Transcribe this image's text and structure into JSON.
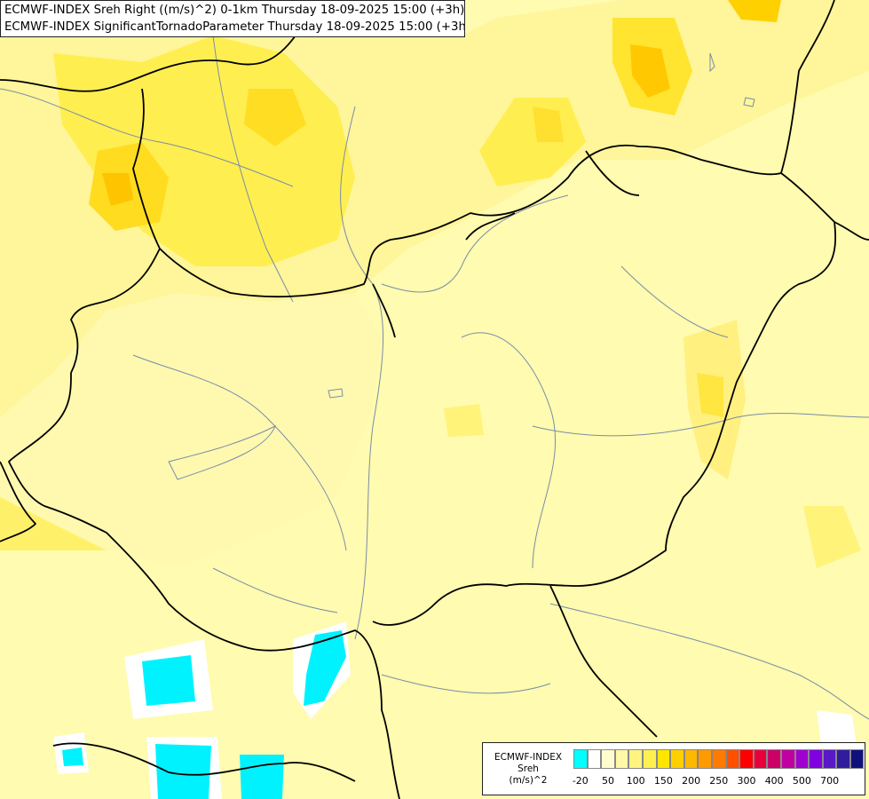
{
  "header": {
    "line1": "ECMWF-INDEX Sreh Right ((m/s)^2) 0-1km Thursday 18-09-2025 15:00 (+3h)",
    "line2": "ECMWF-INDEX SignificantTornadoParameter Thursday 18-09-2025 15:00 (+3h)"
  },
  "legend": {
    "line1": "ECMWF-INDEX",
    "line2": "Sreh",
    "line3": "(m/s)^2",
    "colors": [
      "#00ffff",
      "#ffffff",
      "#fffdd0",
      "#fff8a8",
      "#fff480",
      "#fff050",
      "#ffe600",
      "#ffd000",
      "#ffb800",
      "#ff9a00",
      "#ff7a00",
      "#ff5000",
      "#ff0000",
      "#e8003c",
      "#cc0066",
      "#c000a0",
      "#a000d0",
      "#8000e0",
      "#5a18c8",
      "#301c9c",
      "#10107c"
    ],
    "ticks": [
      "-20",
      "50",
      "100",
      "150",
      "200",
      "250",
      "300",
      "400",
      "500",
      "700"
    ]
  },
  "colors": {
    "background": "#fffbb0",
    "border_line": "#000000",
    "river_line": "#7a8ca8"
  }
}
